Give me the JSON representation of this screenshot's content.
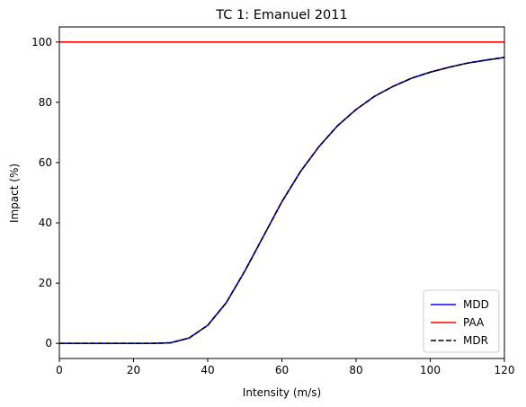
{
  "chart_data": {
    "type": "line",
    "title": "TC 1: Emanuel 2011",
    "xlabel": "Intensity (m/s)",
    "ylabel": "Impact (%)",
    "xlim": [
      0,
      120
    ],
    "ylim": [
      -5,
      105
    ],
    "xticks": [
      0,
      20,
      40,
      60,
      80,
      100,
      120
    ],
    "yticks": [
      0,
      20,
      40,
      60,
      80,
      100
    ],
    "grid": false,
    "legend_position": "lower-right",
    "x": [
      0,
      5,
      10,
      15,
      20,
      25,
      30,
      35,
      40,
      45,
      50,
      55,
      60,
      65,
      70,
      75,
      80,
      85,
      90,
      95,
      100,
      105,
      110,
      115,
      120
    ],
    "series": [
      {
        "name": "MDD",
        "color": "#0000ff",
        "dash": "solid",
        "values": [
          0,
          0,
          0,
          0,
          0,
          0,
          0.2,
          1.8,
          6.0,
          13.5,
          24.0,
          35.5,
          47.0,
          57.0,
          65.3,
          72.2,
          77.6,
          82.0,
          85.3,
          88.0,
          90.0,
          91.6,
          93.0,
          94.0,
          94.9
        ]
      },
      {
        "name": "PAA",
        "color": "#ff0000",
        "dash": "solid",
        "values": [
          100,
          100,
          100,
          100,
          100,
          100,
          100,
          100,
          100,
          100,
          100,
          100,
          100,
          100,
          100,
          100,
          100,
          100,
          100,
          100,
          100,
          100,
          100,
          100,
          100
        ]
      },
      {
        "name": "MDR",
        "color": "#000000",
        "dash": "dashed",
        "values": [
          0,
          0,
          0,
          0,
          0,
          0,
          0.2,
          1.8,
          6.0,
          13.5,
          24.0,
          35.5,
          47.0,
          57.0,
          65.3,
          72.2,
          77.6,
          82.0,
          85.3,
          88.0,
          90.0,
          91.6,
          93.0,
          94.0,
          94.9
        ]
      }
    ]
  }
}
